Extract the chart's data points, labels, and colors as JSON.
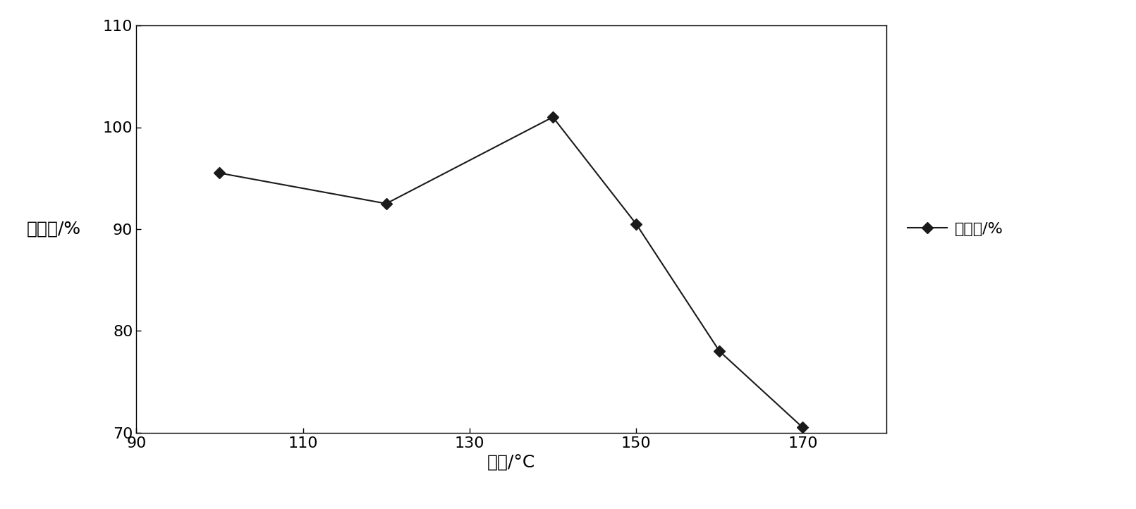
{
  "x": [
    100,
    120,
    140,
    150,
    160,
    170
  ],
  "y": [
    95.5,
    92.5,
    101.0,
    90.5,
    78.0,
    70.5
  ],
  "xlabel": "温度/°C",
  "ylabel": "回收率/%",
  "legend_label": "回收率/%",
  "xlim": [
    90,
    180
  ],
  "ylim": [
    70,
    110
  ],
  "xticks": [
    90,
    110,
    130,
    150,
    170
  ],
  "yticks": [
    70,
    80,
    90,
    100,
    110
  ],
  "line_color": "#1a1a1a",
  "marker": "D",
  "marker_color": "#1a1a1a",
  "marker_size": 8,
  "line_width": 1.5,
  "bg_color": "#ffffff",
  "xlabel_fontsize": 18,
  "ylabel_fontsize": 18,
  "tick_fontsize": 16,
  "legend_fontsize": 16
}
